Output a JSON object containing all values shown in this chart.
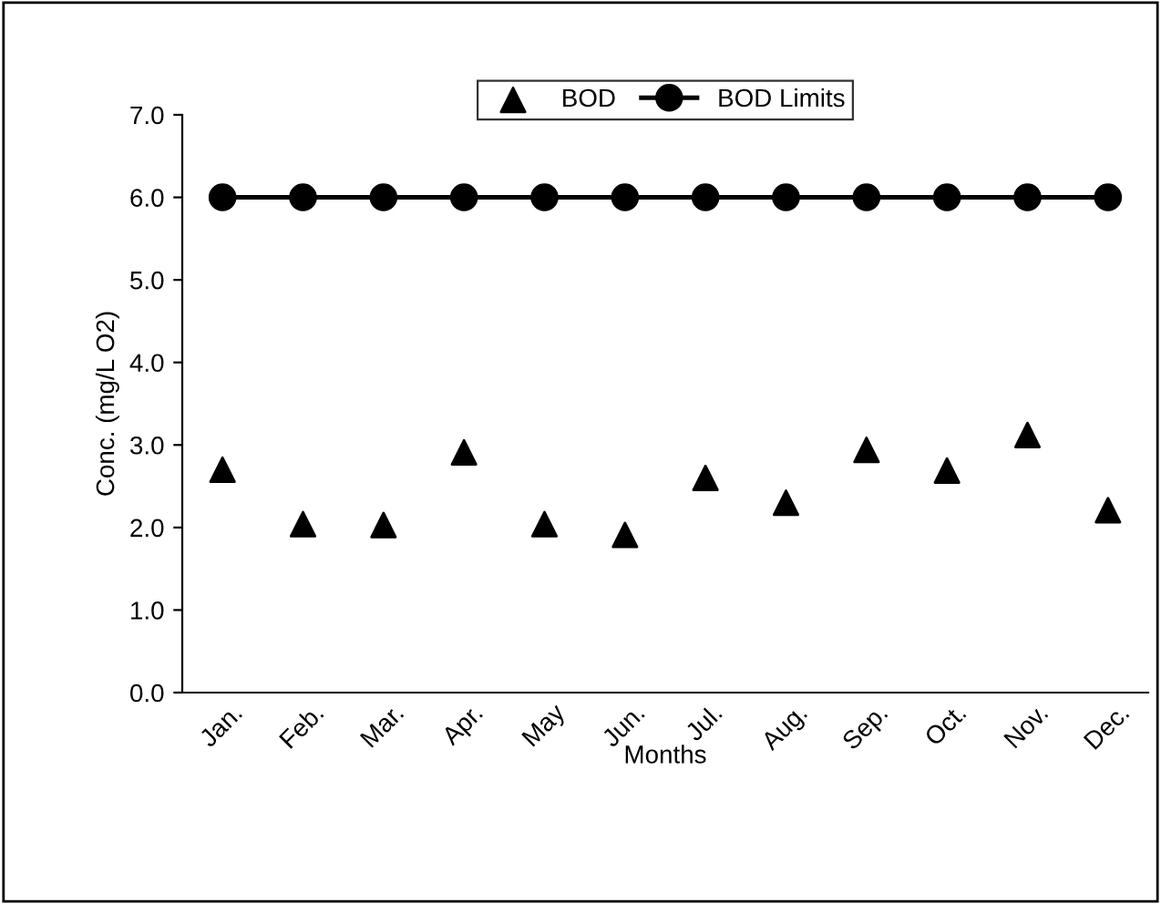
{
  "chart_data": {
    "type": "scatter",
    "xlabel": "Months",
    "ylabel": "Conc. (mg/L O2)",
    "categories": [
      "Jan.",
      "Feb.",
      "Mar.",
      "Apr.",
      "May",
      "Jun.",
      "Jul.",
      "Aug.",
      "Sep.",
      "Oct.",
      "Nov.",
      "Dec."
    ],
    "series": [
      {
        "name": "BOD",
        "marker": "triangle",
        "color": "#000000",
        "values": [
          2.7,
          2.04,
          2.03,
          2.91,
          2.04,
          1.91,
          2.6,
          2.3,
          2.94,
          2.69,
          3.12,
          2.21
        ]
      },
      {
        "name": "BOD Limits",
        "type": "line",
        "marker": "circle",
        "line_style": "solid",
        "color": "#000000",
        "values": [
          6,
          6,
          6,
          6,
          6,
          6,
          6,
          6,
          6,
          6,
          6,
          6
        ]
      }
    ],
    "ylim": [
      0,
      7
    ],
    "yticks": [
      {
        "value": 0,
        "label": "0.0"
      },
      {
        "value": 1,
        "label": "1.0"
      },
      {
        "value": 2,
        "label": "2.0"
      },
      {
        "value": 3,
        "label": "3.0"
      },
      {
        "value": 4,
        "label": "4.0"
      },
      {
        "value": 5,
        "label": "5.0"
      },
      {
        "value": 6,
        "label": "6.0"
      },
      {
        "value": 7,
        "label": "7.0"
      }
    ],
    "grid": false,
    "legend": "top"
  }
}
